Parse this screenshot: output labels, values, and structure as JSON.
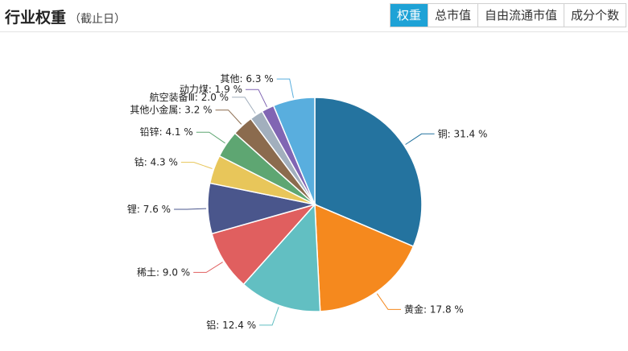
{
  "header": {
    "title": "行业权重",
    "subtitle": "（截止日）"
  },
  "tabs": [
    {
      "label": "权重",
      "active": true
    },
    {
      "label": "总市值",
      "active": false
    },
    {
      "label": "自由流通市值",
      "active": false
    },
    {
      "label": "成分个数",
      "active": false
    }
  ],
  "chart_data": {
    "type": "pie",
    "title": "",
    "categories": [
      "铜",
      "黄金",
      "铝",
      "稀土",
      "锂",
      "钴",
      "铅锌",
      "其他小金属",
      "航空装备Ⅲ",
      "动力煤",
      "其他"
    ],
    "values": [
      31.4,
      17.8,
      12.4,
      9.0,
      7.6,
      4.3,
      4.1,
      3.2,
      2.0,
      1.9,
      6.3
    ],
    "unit": "%",
    "colors": [
      "#24739f",
      "#f5891e",
      "#62bfc2",
      "#e05f5f",
      "#4a568c",
      "#e8c65a",
      "#5ea672",
      "#8b6b4e",
      "#a2afbd",
      "#8165b3",
      "#59aede"
    ],
    "start_angle_deg": 0,
    "direction": "clockwise"
  }
}
